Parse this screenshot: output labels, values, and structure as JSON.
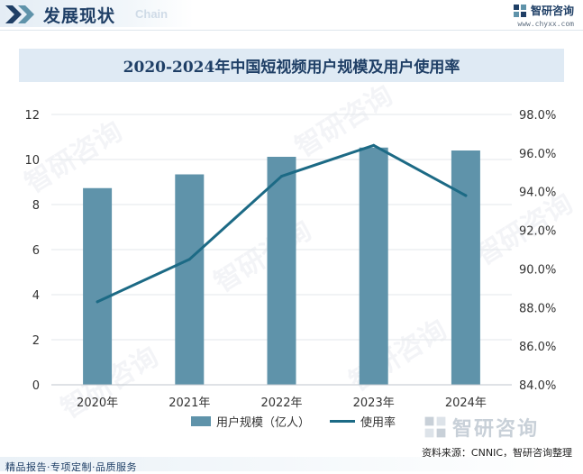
{
  "header": {
    "title": "发展现状",
    "title_en": "Chain",
    "brand_name": "智研咨询",
    "brand_url": "www.chyxx.com"
  },
  "watermark_text": "智研咨询",
  "footer": {
    "source": "资料来源：CNNIC，智研咨询整理",
    "brand_name": "智研咨询",
    "slogan": "精品报告·专项定制·品质服务"
  },
  "colors": {
    "bar": "#5f93aa",
    "line": "#1c6a85",
    "title_text": "#1f3f66",
    "title_band": "#dfeaf4"
  },
  "chart_data": {
    "type": "bar",
    "title": "2020-2024年中国短视频用户规模及用户使用率",
    "categories": [
      "2020年",
      "2021年",
      "2022年",
      "2023年",
      "2024年"
    ],
    "series": [
      {
        "name": "用户规模（亿人）",
        "type": "bar",
        "axis": "left",
        "values": [
          8.73,
          9.34,
          10.12,
          10.53,
          10.4
        ]
      },
      {
        "name": "使用率",
        "type": "line",
        "axis": "right",
        "values": [
          88.3,
          90.5,
          94.8,
          96.4,
          93.8
        ]
      }
    ],
    "y_left": {
      "min": 0,
      "max": 12,
      "ticks": [
        0,
        2,
        4,
        6,
        8,
        10,
        12
      ],
      "tick_labels": [
        "0",
        "2",
        "4",
        "6",
        "8",
        "10",
        "12"
      ]
    },
    "y_right": {
      "min": 84,
      "max": 98,
      "ticks": [
        84,
        86,
        88,
        90,
        92,
        94,
        96,
        98
      ],
      "tick_labels": [
        "84.0%",
        "86.0%",
        "88.0%",
        "90.0%",
        "92.0%",
        "94.0%",
        "96.0%",
        "98.0%"
      ]
    },
    "grid": true,
    "legend_position": "bottom"
  }
}
